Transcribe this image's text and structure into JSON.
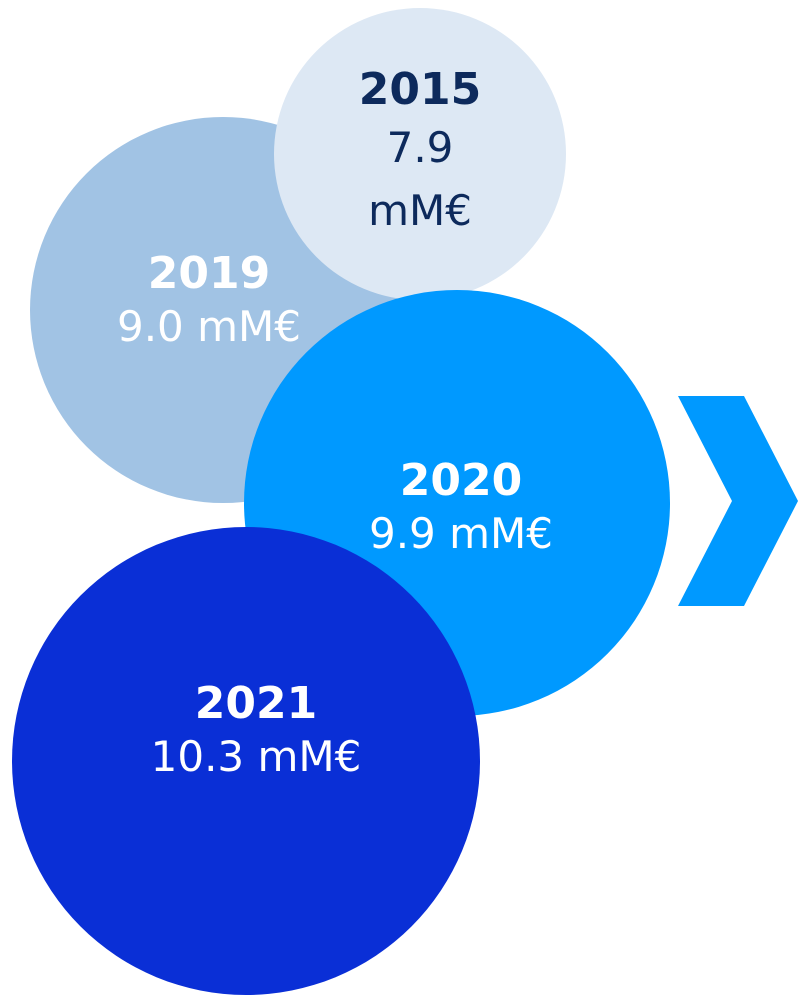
{
  "bubbles": {
    "y2015": {
      "year": "2015",
      "amount_line1": "7.9",
      "amount_line2": "mM€",
      "bg": "#dde8f4",
      "text_color": "#0d2a5c"
    },
    "y2019": {
      "year": "2019",
      "amount": "9.0 mM€",
      "bg": "#a1c3e4",
      "text_color": "#ffffff"
    },
    "y2020": {
      "year": "2020",
      "amount": "9.9 mM€",
      "bg": "#0099ff",
      "text_color": "#ffffff"
    },
    "y2021": {
      "year": "2021",
      "amount": "10.3 mM€",
      "bg": "#0a2fd6",
      "text_color": "#ffffff"
    }
  },
  "chevron": {
    "icon": "chevron-right-icon",
    "color": "#0099ff"
  }
}
